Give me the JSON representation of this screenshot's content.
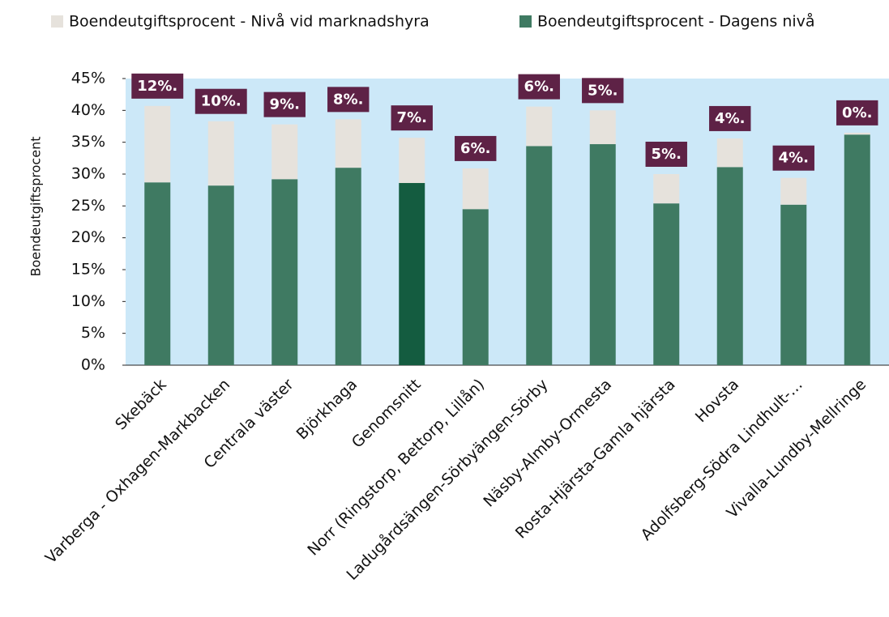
{
  "chart_data": {
    "type": "stacked_bar",
    "y_label": "Boendeutgiftsprocent",
    "categories": [
      "Skebäck",
      "Varberga - Oxhagen-Markbacken",
      "Centrala väster",
      "Björkhaga",
      "Genomsnitt",
      "Norr (Ringstorp, Bettorp, Lillån)",
      "Ladugårdsängen-Sörbyängen-Sörby",
      "Näsby-Almby-Ormesta",
      "Rosta-Hjärsta-Gamla hjärsta",
      "Hovsta",
      "Adolfsberg-Södra Lindhult-…",
      "Vivalla-Lundby-Mellringe"
    ],
    "series": [
      {
        "name": "Boendeutgiftsprocent - Nivå vid marknadshyra",
        "color": "#e6e2dc",
        "values": [
          12.0,
          10.1,
          8.6,
          7.6,
          7.1,
          6.4,
          6.2,
          5.3,
          4.6,
          4.5,
          4.2,
          0.3
        ],
        "value_labels": [
          "12%.",
          "10%.",
          "9%.",
          "8%.",
          "7%.",
          "6%.",
          "6%.",
          "5%.",
          "5%.",
          "4%.",
          "4%.",
          "0%."
        ]
      },
      {
        "name": "Boendeutgiftsprocent - Dagens nivå",
        "color": "#3f7a62",
        "colors": [
          "#3f7a62",
          "#3f7a62",
          "#3f7a62",
          "#3f7a62",
          "#145c40",
          "#3f7a62",
          "#3f7a62",
          "#3f7a62",
          "#3f7a62",
          "#3f7a62",
          "#3f7a62",
          "#3f7a62"
        ],
        "values": [
          28.7,
          28.2,
          29.2,
          31.0,
          28.6,
          24.5,
          34.4,
          34.7,
          25.4,
          31.1,
          25.2,
          36.2
        ]
      }
    ],
    "ylim": [
      0,
      45
    ],
    "yticks": [
      {
        "value": 0,
        "label": "0%"
      },
      {
        "value": 5,
        "label": "5%"
      },
      {
        "value": 10,
        "label": "10%"
      },
      {
        "value": 15,
        "label": "15%"
      },
      {
        "value": 20,
        "label": "20%"
      },
      {
        "value": 25,
        "label": "25%"
      },
      {
        "value": 30,
        "label": "30%"
      },
      {
        "value": 35,
        "label": "35%"
      },
      {
        "value": 40,
        "label": "40%"
      },
      {
        "value": 45,
        "label": "45%"
      }
    ],
    "plot_background": "#cce8f8",
    "label_box_color": "#5e2246"
  }
}
